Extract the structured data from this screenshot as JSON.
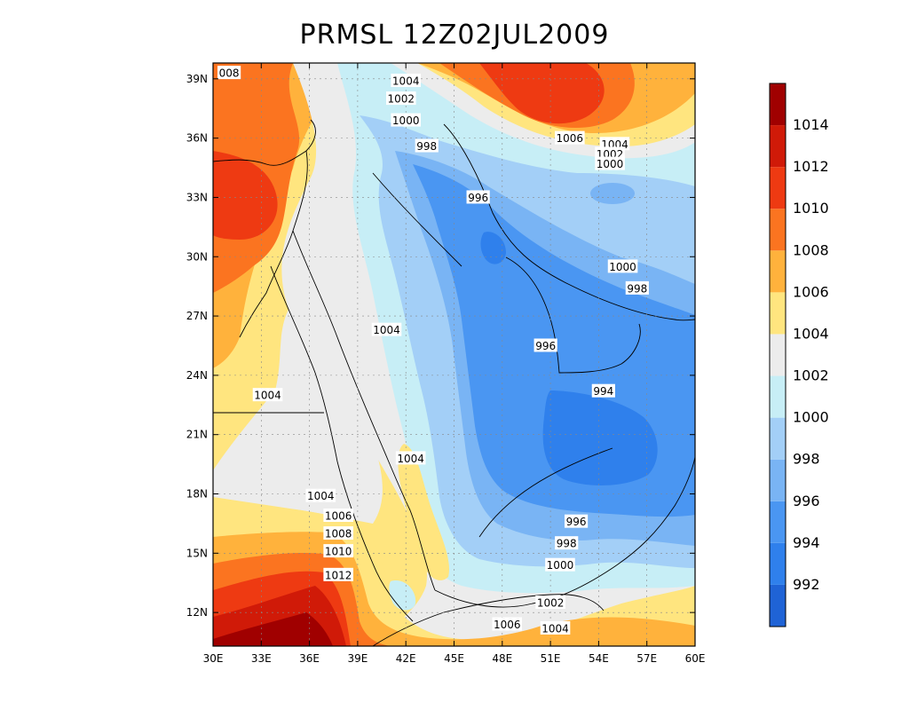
{
  "title": "PRMSL  12Z02JUL2009",
  "chart_data": {
    "type": "heatmap",
    "variable": "PRMSL",
    "xlim": [
      30,
      60
    ],
    "ylim": [
      10.3,
      39.8
    ],
    "x_ticks": [
      "30E",
      "33E",
      "36E",
      "39E",
      "42E",
      "45E",
      "48E",
      "51E",
      "54E",
      "57E",
      "60E"
    ],
    "x_tick_values": [
      30,
      33,
      36,
      39,
      42,
      45,
      48,
      51,
      54,
      57,
      60
    ],
    "y_ticks": [
      "12N",
      "15N",
      "18N",
      "21N",
      "24N",
      "27N",
      "30N",
      "33N",
      "36N",
      "39N"
    ],
    "y_tick_values": [
      12,
      15,
      18,
      21,
      24,
      27,
      30,
      33,
      36,
      39
    ],
    "grid": true,
    "colorbar": {
      "levels": [
        "992",
        "994",
        "996",
        "998",
        "1000",
        "1002",
        "1004",
        "1006",
        "1008",
        "1010",
        "1012",
        "1014"
      ],
      "colors": [
        "#1f63d6",
        "#2f80ec",
        "#4a96f2",
        "#79b4f4",
        "#a3cff7",
        "#c7eef6",
        "#ececec",
        "#ffe57f",
        "#ffb23c",
        "#fb7420",
        "#ee3a12",
        "#d01a08",
        "#a00000"
      ]
    },
    "contour_labels": [
      {
        "text": "1004",
        "lon": 42.0,
        "lat": 38.9
      },
      {
        "text": "1002",
        "lon": 41.7,
        "lat": 38.0
      },
      {
        "text": "1000",
        "lon": 42.0,
        "lat": 36.9
      },
      {
        "text": "998",
        "lon": 43.3,
        "lat": 35.6
      },
      {
        "text": "996",
        "lon": 46.5,
        "lat": 33.0
      },
      {
        "text": "008",
        "lon": 31.0,
        "lat": 39.3
      },
      {
        "text": "1006",
        "lon": 52.2,
        "lat": 36.0
      },
      {
        "text": "1004",
        "lon": 55.0,
        "lat": 35.7
      },
      {
        "text": "1002",
        "lon": 54.7,
        "lat": 35.2
      },
      {
        "text": "1000",
        "lon": 54.7,
        "lat": 34.7
      },
      {
        "text": "1000",
        "lon": 55.5,
        "lat": 29.5
      },
      {
        "text": "998",
        "lon": 56.4,
        "lat": 28.4
      },
      {
        "text": "1004",
        "lon": 40.8,
        "lat": 26.3
      },
      {
        "text": "996",
        "lon": 50.7,
        "lat": 25.5
      },
      {
        "text": "994",
        "lon": 54.3,
        "lat": 23.2
      },
      {
        "text": "1004",
        "lon": 33.4,
        "lat": 23.0
      },
      {
        "text": "1004",
        "lon": 42.3,
        "lat": 19.8
      },
      {
        "text": "1004",
        "lon": 36.7,
        "lat": 17.9
      },
      {
        "text": "1006",
        "lon": 37.8,
        "lat": 16.9
      },
      {
        "text": "1008",
        "lon": 37.8,
        "lat": 16.0
      },
      {
        "text": "1010",
        "lon": 37.8,
        "lat": 15.1
      },
      {
        "text": "1012",
        "lon": 37.8,
        "lat": 13.9
      },
      {
        "text": "996",
        "lon": 52.6,
        "lat": 16.6
      },
      {
        "text": "998",
        "lon": 52.0,
        "lat": 15.5
      },
      {
        "text": "1000",
        "lon": 51.6,
        "lat": 14.4
      },
      {
        "text": "1002",
        "lon": 51.0,
        "lat": 12.5
      },
      {
        "text": "1006",
        "lon": 48.3,
        "lat": 11.4
      },
      {
        "text": "1004",
        "lon": 51.3,
        "lat": 11.2
      }
    ]
  }
}
